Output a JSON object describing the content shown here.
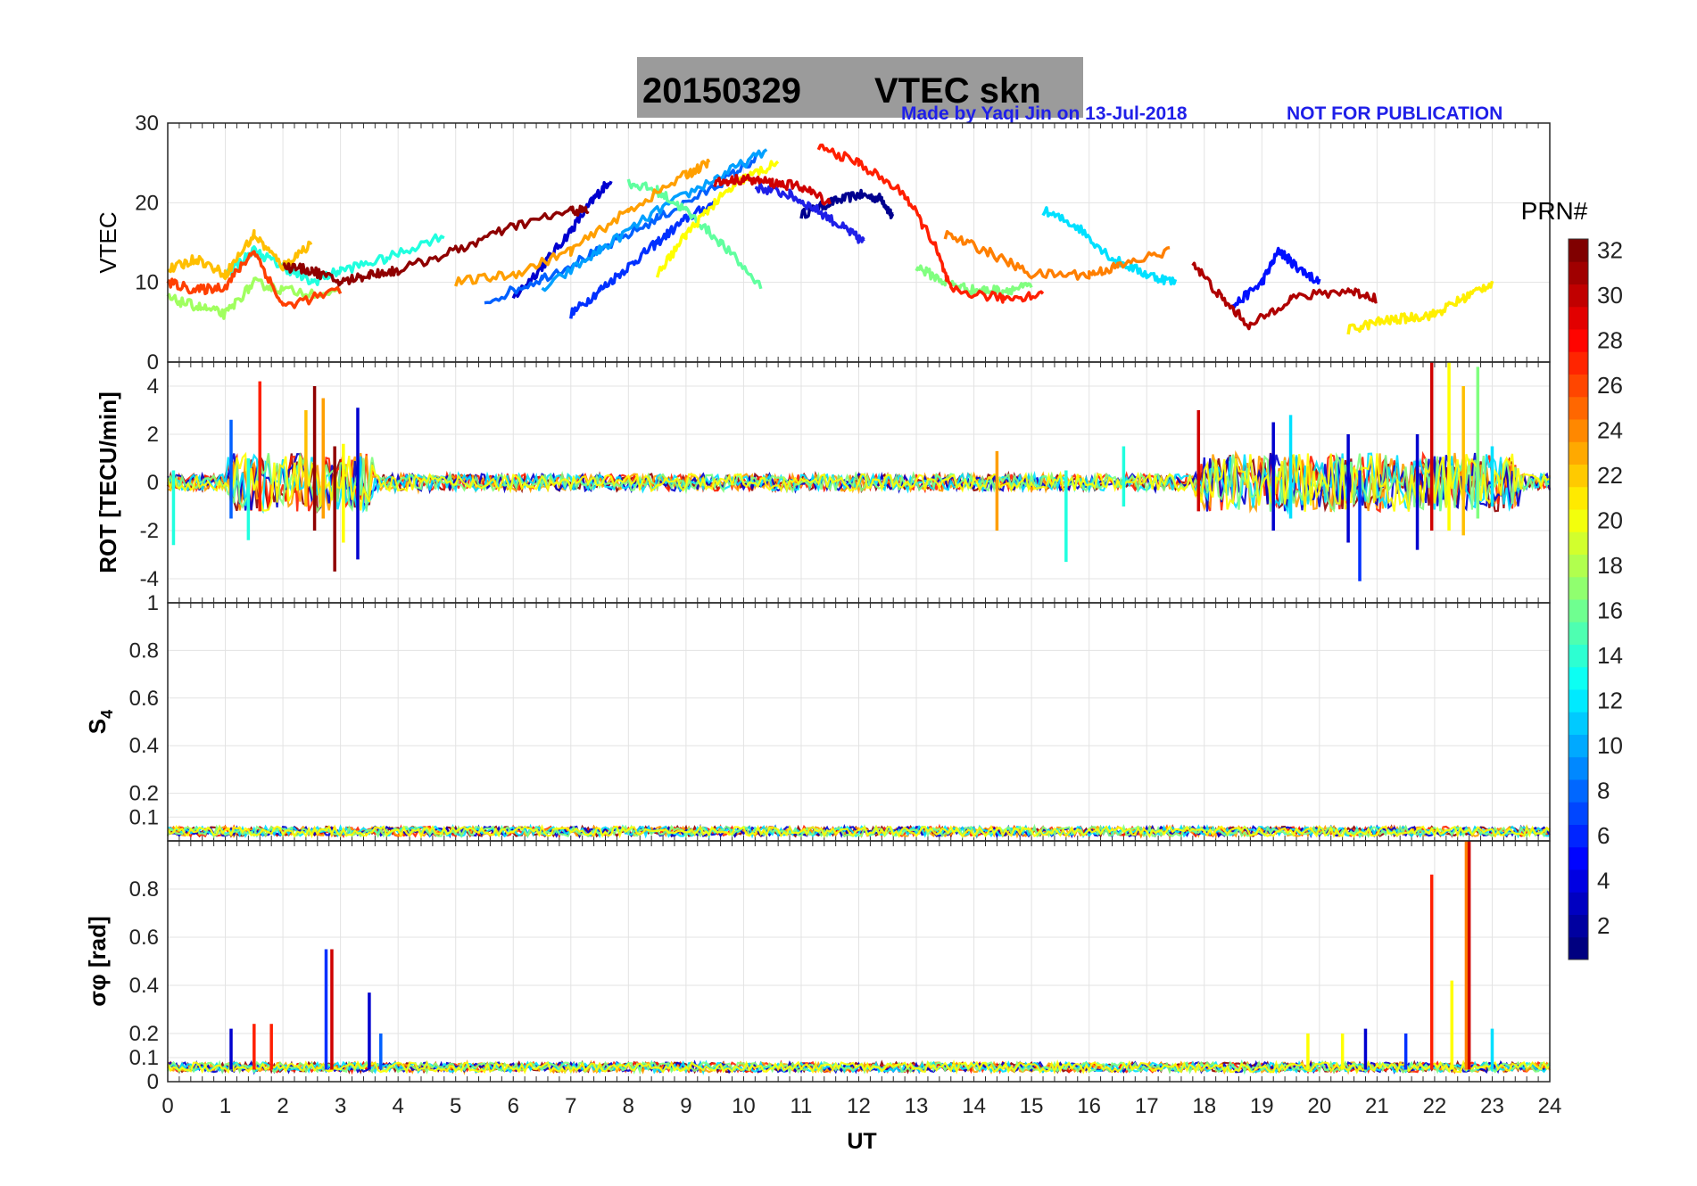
{
  "header": {
    "date": "20150329",
    "station": "VTEC  skn",
    "credit": "Made by Yaqi Jin on 13-Jul-2018",
    "notice": "NOT FOR PUBLICATION"
  },
  "colorbar": {
    "label": "PRN#",
    "ticks": [
      "2",
      "4",
      "6",
      "8",
      "10",
      "12",
      "14",
      "16",
      "18",
      "20",
      "22",
      "24",
      "26",
      "28",
      "30",
      "32"
    ],
    "range": [
      1,
      32
    ]
  },
  "chart_data": [
    {
      "type": "line",
      "panel": "vtec",
      "ylabel": "VTEC",
      "xlim": [
        0,
        24
      ],
      "ylim": [
        0,
        30
      ],
      "yticks": [
        "0",
        "10",
        "20",
        "30"
      ],
      "series": [
        {
          "prn": 1,
          "color": "#00008f",
          "x": [
            11.0,
            11.5,
            12.0,
            12.4,
            12.6
          ],
          "y": [
            18.5,
            20.0,
            21.0,
            20.5,
            18.0
          ]
        },
        {
          "prn": 3,
          "color": "#0000cf",
          "x": [
            6.0,
            6.5,
            7.0,
            7.4,
            7.7
          ],
          "y": [
            8.0,
            12.0,
            16.5,
            20.5,
            23.0
          ]
        },
        {
          "prn": 5,
          "color": "#0010ff",
          "x": [
            18.5,
            19.0,
            19.3,
            19.6,
            20.0
          ],
          "y": [
            7.0,
            10.0,
            14.0,
            12.0,
            10.0
          ]
        },
        {
          "prn": 6,
          "color": "#0030ff",
          "x": [
            7.0,
            7.5,
            8.0,
            8.5,
            9.0,
            9.5
          ],
          "y": [
            6.0,
            9.0,
            12.0,
            15.0,
            18.0,
            20.0
          ]
        },
        {
          "prn": 7,
          "color": "#1f1fe8",
          "x": [
            10.2,
            10.8,
            11.3,
            11.8,
            12.1
          ],
          "y": [
            22.0,
            21.0,
            19.0,
            16.5,
            15.0
          ]
        },
        {
          "prn": 8,
          "color": "#0060ff",
          "x": [
            5.5,
            6.5,
            7.5,
            8.5,
            9.5,
            10.3
          ],
          "y": [
            7.5,
            10.5,
            14.0,
            18.0,
            22.0,
            26.0
          ]
        },
        {
          "prn": 10,
          "color": "#00a0ff",
          "x": [
            6.5,
            7.5,
            8.5,
            9.5,
            10.4
          ],
          "y": [
            9.0,
            14.0,
            19.0,
            23.0,
            26.5
          ]
        },
        {
          "prn": 12,
          "color": "#00e0ff",
          "x": [
            15.2,
            15.8,
            16.4,
            17.0,
            17.5
          ],
          "y": [
            19.0,
            17.0,
            13.0,
            11.0,
            10.0
          ]
        },
        {
          "prn": 14,
          "color": "#20ffdf",
          "x": [
            1.0,
            1.5,
            2.0,
            2.5,
            3.0,
            3.8,
            4.8
          ],
          "y": [
            11.0,
            14.0,
            12.0,
            10.0,
            11.5,
            13.0,
            16.0
          ]
        },
        {
          "prn": 16,
          "color": "#60ff9f",
          "x": [
            8.0,
            8.5,
            9.0,
            9.6,
            10.3
          ],
          "y": [
            22.5,
            21.5,
            19.0,
            15.0,
            9.5
          ]
        },
        {
          "prn": 17,
          "color": "#80ff7f",
          "x": [
            13.0,
            13.5,
            14.0,
            14.5,
            15.0
          ],
          "y": [
            12.0,
            10.0,
            9.0,
            9.0,
            9.5
          ]
        },
        {
          "prn": 18,
          "color": "#a0ff5f",
          "x": [
            0.0,
            0.5,
            1.0,
            1.5,
            2.0,
            3.0
          ],
          "y": [
            8.0,
            7.0,
            6.0,
            10.0,
            9.0,
            8.5
          ]
        },
        {
          "prn": 20,
          "color": "#ffff00",
          "x": [
            8.5,
            9.0,
            9.5,
            10.0,
            10.6
          ],
          "y": [
            11.0,
            16.0,
            20.0,
            23.0,
            25.0
          ]
        },
        {
          "prn": 21,
          "color": "#ffef00",
          "x": [
            20.5,
            21.0,
            21.5,
            22.0,
            22.5,
            23.0
          ],
          "y": [
            4.0,
            5.0,
            5.5,
            6.0,
            8.0,
            10.0
          ]
        },
        {
          "prn": 22,
          "color": "#ffbf00",
          "x": [
            0.0,
            0.5,
            1.0,
            1.5,
            2.0,
            2.5
          ],
          "y": [
            11.5,
            13.0,
            11.0,
            16.0,
            12.0,
            15.0
          ]
        },
        {
          "prn": 24,
          "color": "#ff9f00",
          "x": [
            5.0,
            6.0,
            7.0,
            8.0,
            9.0,
            9.4
          ],
          "y": [
            10.0,
            11.0,
            14.0,
            19.0,
            23.5,
            25.0
          ]
        },
        {
          "prn": 25,
          "color": "#ff7f00",
          "x": [
            13.5,
            14.2,
            15.0,
            16.0,
            16.5,
            17.4
          ],
          "y": [
            16.0,
            14.0,
            11.0,
            11.0,
            12.0,
            14.0
          ]
        },
        {
          "prn": 27,
          "color": "#ff3f00",
          "x": [
            0.0,
            0.5,
            1.0,
            1.5,
            2.0,
            3.0
          ],
          "y": [
            10.0,
            9.0,
            9.5,
            14.0,
            7.0,
            9.0
          ]
        },
        {
          "prn": 28,
          "color": "#ff1f00",
          "x": [
            11.3,
            12.0,
            12.8,
            13.3,
            13.6,
            14.5,
            15.2
          ],
          "y": [
            27.0,
            25.0,
            21.0,
            15.0,
            9.0,
            8.0,
            8.5
          ]
        },
        {
          "prn": 30,
          "color": "#cf0000",
          "x": [
            9.5,
            10.0,
            10.5,
            11.0,
            11.5
          ],
          "y": [
            22.5,
            23.0,
            22.5,
            22.0,
            20.0
          ]
        },
        {
          "prn": 31,
          "color": "#af0000",
          "x": [
            17.8,
            18.3,
            18.8,
            19.5,
            20.5,
            21.0
          ],
          "y": [
            12.5,
            8.0,
            4.5,
            8.0,
            9.0,
            8.0
          ]
        },
        {
          "prn": 32,
          "color": "#8f0000",
          "x": [
            2.0,
            2.5,
            3.0,
            3.5,
            4.0,
            5.0,
            6.0,
            7.0,
            7.3
          ],
          "y": [
            12.0,
            11.5,
            10.0,
            11.0,
            11.5,
            14.0,
            17.0,
            19.0,
            19.0
          ]
        }
      ]
    },
    {
      "type": "line",
      "panel": "rot",
      "ylabel": "ROT [TECU/min]",
      "xlim": [
        0,
        24
      ],
      "ylim": [
        -5,
        5
      ],
      "yticks": [
        "-4",
        "-2",
        "0",
        "2",
        "4"
      ],
      "spikes": [
        {
          "x": 0.1,
          "ymin": -2.6,
          "ymax": 0.5,
          "color": "#20ffdf"
        },
        {
          "x": 1.1,
          "ymin": -1.5,
          "ymax": 2.6,
          "color": "#0060ff"
        },
        {
          "x": 1.6,
          "ymin": -1.2,
          "ymax": 4.2,
          "color": "#ff1f00"
        },
        {
          "x": 1.4,
          "ymin": -2.4,
          "ymax": 1.0,
          "color": "#20ffdf"
        },
        {
          "x": 2.4,
          "ymin": -1.0,
          "ymax": 3.0,
          "color": "#ffbf00"
        },
        {
          "x": 2.55,
          "ymin": -2.0,
          "ymax": 4.0,
          "color": "#8f0000"
        },
        {
          "x": 2.7,
          "ymin": -1.5,
          "ymax": 3.5,
          "color": "#ff9f00"
        },
        {
          "x": 2.9,
          "ymin": -3.7,
          "ymax": 1.5,
          "color": "#8f0000"
        },
        {
          "x": 3.05,
          "ymin": -2.5,
          "ymax": 1.6,
          "color": "#ffff00"
        },
        {
          "x": 3.3,
          "ymin": -3.2,
          "ymax": 3.1,
          "color": "#0000cf"
        },
        {
          "x": 14.4,
          "ymin": -2.0,
          "ymax": 1.3,
          "color": "#ff9f00"
        },
        {
          "x": 15.6,
          "ymin": -3.3,
          "ymax": 0.5,
          "color": "#20ffdf"
        },
        {
          "x": 16.6,
          "ymin": -1.0,
          "ymax": 1.5,
          "color": "#20ffdf"
        },
        {
          "x": 17.9,
          "ymin": -1.2,
          "ymax": 3.0,
          "color": "#cf0000"
        },
        {
          "x": 19.2,
          "ymin": -2.0,
          "ymax": 2.5,
          "color": "#0000cf"
        },
        {
          "x": 19.5,
          "ymin": -1.5,
          "ymax": 2.8,
          "color": "#00e0ff"
        },
        {
          "x": 20.5,
          "ymin": -2.5,
          "ymax": 2.0,
          "color": "#0000cf"
        },
        {
          "x": 20.7,
          "ymin": -4.1,
          "ymax": 0.5,
          "color": "#0030ff"
        },
        {
          "x": 21.7,
          "ymin": -2.8,
          "ymax": 2.0,
          "color": "#0000cf"
        },
        {
          "x": 21.95,
          "ymin": -2.0,
          "ymax": 5.0,
          "color": "#cf0000"
        },
        {
          "x": 22.25,
          "ymin": -2.0,
          "ymax": 5.0,
          "color": "#ffff00"
        },
        {
          "x": 22.5,
          "ymin": -2.2,
          "ymax": 4.0,
          "color": "#ffbf00"
        },
        {
          "x": 22.75,
          "ymin": -1.5,
          "ymax": 4.8,
          "color": "#80ff7f"
        },
        {
          "x": 23.0,
          "ymin": -1.0,
          "ymax": 1.5,
          "color": "#00e0ff"
        }
      ]
    },
    {
      "type": "line",
      "panel": "s4",
      "ylabel": "S4",
      "xlim": [
        0,
        24
      ],
      "ylim": [
        0,
        1
      ],
      "yticks": [
        "0.1",
        "0.2",
        "0.4",
        "0.6",
        "0.8",
        "1"
      ],
      "baseline": 0.04
    },
    {
      "type": "line",
      "panel": "sigma_phi",
      "ylabel": "σφ [rad]",
      "xlim": [
        0,
        24
      ],
      "ylim": [
        0,
        1
      ],
      "yticks": [
        "0",
        "0.1",
        "0.2",
        "0.4",
        "0.6",
        "0.8"
      ],
      "baseline": 0.06,
      "spikes": [
        {
          "x": 1.1,
          "ymin": 0.05,
          "ymax": 0.22,
          "color": "#0000cf"
        },
        {
          "x": 1.5,
          "ymin": 0.05,
          "ymax": 0.24,
          "color": "#ff1f00"
        },
        {
          "x": 1.8,
          "ymin": 0.05,
          "ymax": 0.24,
          "color": "#ff1f00"
        },
        {
          "x": 2.75,
          "ymin": 0.05,
          "ymax": 0.55,
          "color": "#0030ff"
        },
        {
          "x": 2.85,
          "ymin": 0.05,
          "ymax": 0.55,
          "color": "#cf0000"
        },
        {
          "x": 3.5,
          "ymin": 0.05,
          "ymax": 0.37,
          "color": "#0000cf"
        },
        {
          "x": 3.7,
          "ymin": 0.05,
          "ymax": 0.2,
          "color": "#0060ff"
        },
        {
          "x": 19.8,
          "ymin": 0.05,
          "ymax": 0.2,
          "color": "#ffff00"
        },
        {
          "x": 20.4,
          "ymin": 0.05,
          "ymax": 0.2,
          "color": "#ffff00"
        },
        {
          "x": 20.8,
          "ymin": 0.05,
          "ymax": 0.22,
          "color": "#0000cf"
        },
        {
          "x": 21.5,
          "ymin": 0.05,
          "ymax": 0.2,
          "color": "#0030ff"
        },
        {
          "x": 21.95,
          "ymin": 0.05,
          "ymax": 0.86,
          "color": "#ff1f00"
        },
        {
          "x": 22.3,
          "ymin": 0.05,
          "ymax": 0.42,
          "color": "#ffff00"
        },
        {
          "x": 22.55,
          "ymin": 0.05,
          "ymax": 1.0,
          "color": "#ff7f00"
        },
        {
          "x": 22.6,
          "ymin": 0.05,
          "ymax": 1.0,
          "color": "#cf0000"
        },
        {
          "x": 23.0,
          "ymin": 0.05,
          "ymax": 0.22,
          "color": "#00e0ff"
        }
      ]
    }
  ],
  "xaxis": {
    "label": "UT",
    "ticks": [
      "0",
      "1",
      "2",
      "3",
      "4",
      "5",
      "6",
      "7",
      "8",
      "9",
      "10",
      "11",
      "12",
      "13",
      "14",
      "15",
      "16",
      "17",
      "18",
      "19",
      "20",
      "21",
      "22",
      "23",
      "24"
    ]
  }
}
